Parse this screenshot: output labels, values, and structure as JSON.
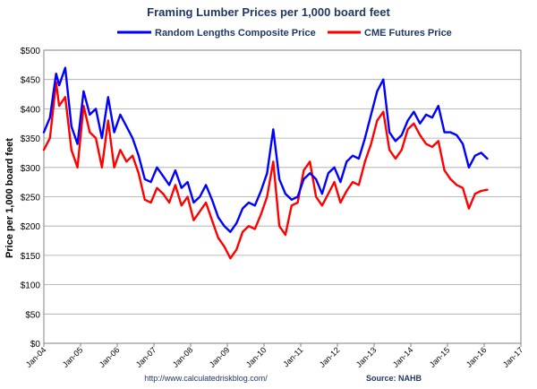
{
  "chart_data": {
    "type": "line",
    "title": "Framing Lumber Prices per 1,000 board feet",
    "ylabel": "Price per 1,000 board feet",
    "xlabel": "",
    "ylim": [
      0,
      500
    ],
    "y_ticks": [
      "$0",
      "$50",
      "$100",
      "$150",
      "$200",
      "$250",
      "$300",
      "$350",
      "$400",
      "$450",
      "$500"
    ],
    "x_ticks": [
      "Jan-04",
      "Jan-05",
      "Jan-06",
      "Jan-07",
      "Jan-08",
      "Jan-09",
      "Jan-10",
      "Jan-11",
      "Jan-12",
      "Jan-13",
      "Jan-14",
      "Jan-15",
      "Jan-16",
      "Jan-17"
    ],
    "grid": true,
    "legend_position": "top",
    "source_url": "http://www.calculatedriskblog.com/",
    "source": "Source: NAHB",
    "series": [
      {
        "name": "Random Lengths Composite Price",
        "color": "#0000ff",
        "x": [
          "2004-01",
          "2004-03",
          "2004-05",
          "2004-06",
          "2004-08",
          "2004-10",
          "2004-12",
          "2005-02",
          "2005-04",
          "2005-06",
          "2005-08",
          "2005-10",
          "2005-12",
          "2006-02",
          "2006-04",
          "2006-06",
          "2006-08",
          "2006-10",
          "2006-12",
          "2007-02",
          "2007-04",
          "2007-06",
          "2007-08",
          "2007-10",
          "2007-12",
          "2008-02",
          "2008-04",
          "2008-06",
          "2008-08",
          "2008-10",
          "2008-12",
          "2009-02",
          "2009-04",
          "2009-06",
          "2009-08",
          "2009-10",
          "2009-12",
          "2010-02",
          "2010-04",
          "2010-06",
          "2010-08",
          "2010-10",
          "2010-12",
          "2011-02",
          "2011-04",
          "2011-06",
          "2011-08",
          "2011-10",
          "2011-12",
          "2012-02",
          "2012-04",
          "2012-06",
          "2012-08",
          "2012-10",
          "2012-12",
          "2013-02",
          "2013-04",
          "2013-06",
          "2013-08",
          "2013-10",
          "2013-12",
          "2014-02",
          "2014-04",
          "2014-06",
          "2014-08",
          "2014-10",
          "2014-12",
          "2015-02",
          "2015-04",
          "2015-06",
          "2015-08",
          "2015-10",
          "2015-12",
          "2016-02"
        ],
        "values": [
          360,
          385,
          460,
          440,
          470,
          370,
          340,
          430,
          390,
          400,
          350,
          420,
          360,
          390,
          370,
          350,
          320,
          280,
          275,
          300,
          285,
          270,
          295,
          265,
          275,
          240,
          250,
          270,
          245,
          215,
          200,
          190,
          205,
          230,
          240,
          235,
          260,
          290,
          365,
          280,
          255,
          245,
          250,
          280,
          290,
          280,
          255,
          290,
          300,
          275,
          310,
          320,
          315,
          350,
          390,
          430,
          450,
          360,
          345,
          355,
          380,
          395,
          375,
          390,
          385,
          405,
          360,
          360,
          355,
          340,
          300,
          320,
          325,
          315
        ]
      },
      {
        "name": "CME Futures Price",
        "color": "#ff0000",
        "x": [
          "2004-01",
          "2004-03",
          "2004-05",
          "2004-06",
          "2004-08",
          "2004-10",
          "2004-12",
          "2005-02",
          "2005-04",
          "2005-06",
          "2005-08",
          "2005-10",
          "2005-12",
          "2006-02",
          "2006-04",
          "2006-06",
          "2006-08",
          "2006-10",
          "2006-12",
          "2007-02",
          "2007-04",
          "2007-06",
          "2007-08",
          "2007-10",
          "2007-12",
          "2008-02",
          "2008-04",
          "2008-06",
          "2008-08",
          "2008-10",
          "2008-12",
          "2009-02",
          "2009-04",
          "2009-06",
          "2009-08",
          "2009-10",
          "2009-12",
          "2010-02",
          "2010-04",
          "2010-06",
          "2010-08",
          "2010-10",
          "2010-12",
          "2011-02",
          "2011-04",
          "2011-06",
          "2011-08",
          "2011-10",
          "2011-12",
          "2012-02",
          "2012-04",
          "2012-06",
          "2012-08",
          "2012-10",
          "2012-12",
          "2013-02",
          "2013-04",
          "2013-06",
          "2013-08",
          "2013-10",
          "2013-12",
          "2014-02",
          "2014-04",
          "2014-06",
          "2014-08",
          "2014-10",
          "2014-12",
          "2015-02",
          "2015-04",
          "2015-06",
          "2015-08",
          "2015-10",
          "2015-12",
          "2016-02"
        ],
        "values": [
          330,
          350,
          445,
          405,
          420,
          330,
          300,
          405,
          360,
          350,
          300,
          380,
          300,
          330,
          310,
          320,
          290,
          245,
          240,
          265,
          255,
          240,
          270,
          235,
          250,
          210,
          225,
          240,
          210,
          180,
          165,
          145,
          160,
          190,
          200,
          195,
          220,
          250,
          310,
          200,
          185,
          235,
          240,
          295,
          310,
          250,
          235,
          255,
          275,
          240,
          260,
          275,
          270,
          310,
          340,
          380,
          395,
          330,
          315,
          330,
          365,
          375,
          355,
          340,
          335,
          345,
          295,
          280,
          270,
          265,
          230,
          255,
          260,
          262
        ]
      }
    ]
  }
}
